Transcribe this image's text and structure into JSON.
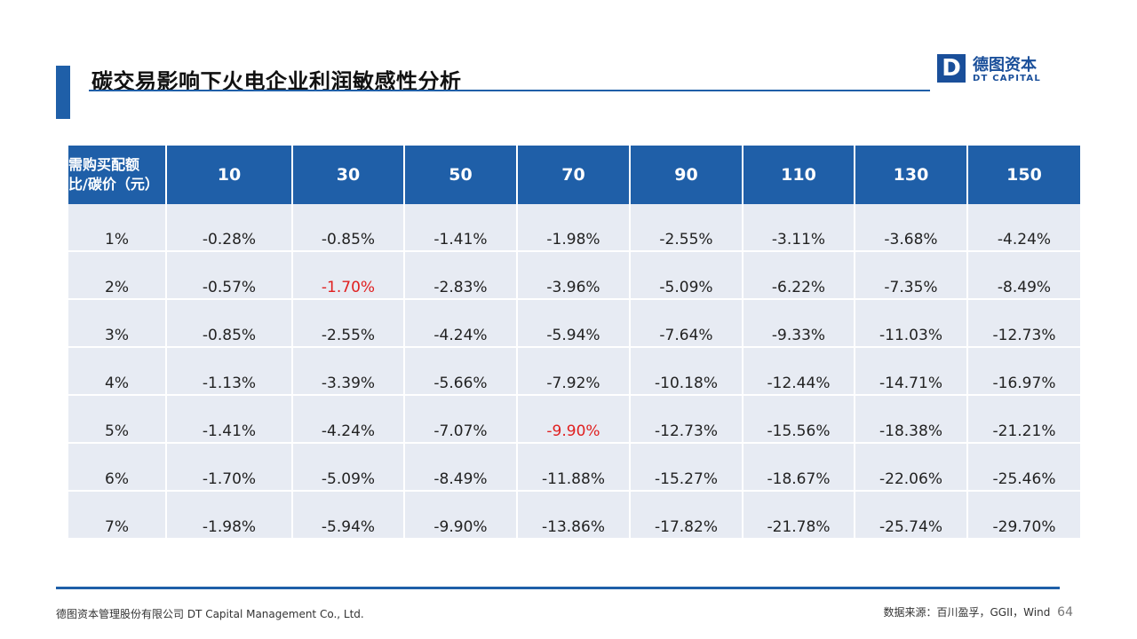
{
  "title": "碳交易影响下火电企业利润敏感性分析",
  "logo": {
    "mark": "D",
    "cn": "德图资本",
    "en": "DT CAPITAL"
  },
  "table": {
    "corner_line1": "需购买配额",
    "corner_line2": "比/碳价（元）",
    "headers": [
      "10",
      "30",
      "50",
      "70",
      "90",
      "110",
      "130",
      "150"
    ],
    "rows": [
      {
        "label": "1%",
        "cells": [
          "-0.28%",
          "-0.85%",
          "-1.41%",
          "-1.98%",
          "-2.55%",
          "-3.11%",
          "-3.68%",
          "-4.24%"
        ]
      },
      {
        "label": "2%",
        "cells": [
          "-0.57%",
          "-1.70%",
          "-2.83%",
          "-3.96%",
          "-5.09%",
          "-6.22%",
          "-7.35%",
          "-8.49%"
        ]
      },
      {
        "label": "3%",
        "cells": [
          "-0.85%",
          "-2.55%",
          "-4.24%",
          "-5.94%",
          "-7.64%",
          "-9.33%",
          "-11.03%",
          "-12.73%"
        ]
      },
      {
        "label": "4%",
        "cells": [
          "-1.13%",
          "-3.39%",
          "-5.66%",
          "-7.92%",
          "-10.18%",
          "-12.44%",
          "-14.71%",
          "-16.97%"
        ]
      },
      {
        "label": "5%",
        "cells": [
          "-1.41%",
          "-4.24%",
          "-7.07%",
          "-9.90%",
          "-12.73%",
          "-15.56%",
          "-18.38%",
          "-21.21%"
        ]
      },
      {
        "label": "6%",
        "cells": [
          "-1.70%",
          "-5.09%",
          "-8.49%",
          "-11.88%",
          "-15.27%",
          "-18.67%",
          "-22.06%",
          "-25.46%"
        ]
      },
      {
        "label": "7%",
        "cells": [
          "-1.98%",
          "-5.94%",
          "-9.90%",
          "-13.86%",
          "-17.82%",
          "-21.78%",
          "-25.74%",
          "-29.70%"
        ]
      }
    ],
    "highlight_color": "#e02020"
  },
  "footer": {
    "company": "德图资本管理股份有限公司  DT Capital Management  Co., Ltd.",
    "source": "数据来源：百川盈孚，GGII，Wind",
    "page": "64"
  },
  "colors": {
    "brand_blue": "#1f5fa8",
    "cell_bg": "#e7ebf3"
  }
}
